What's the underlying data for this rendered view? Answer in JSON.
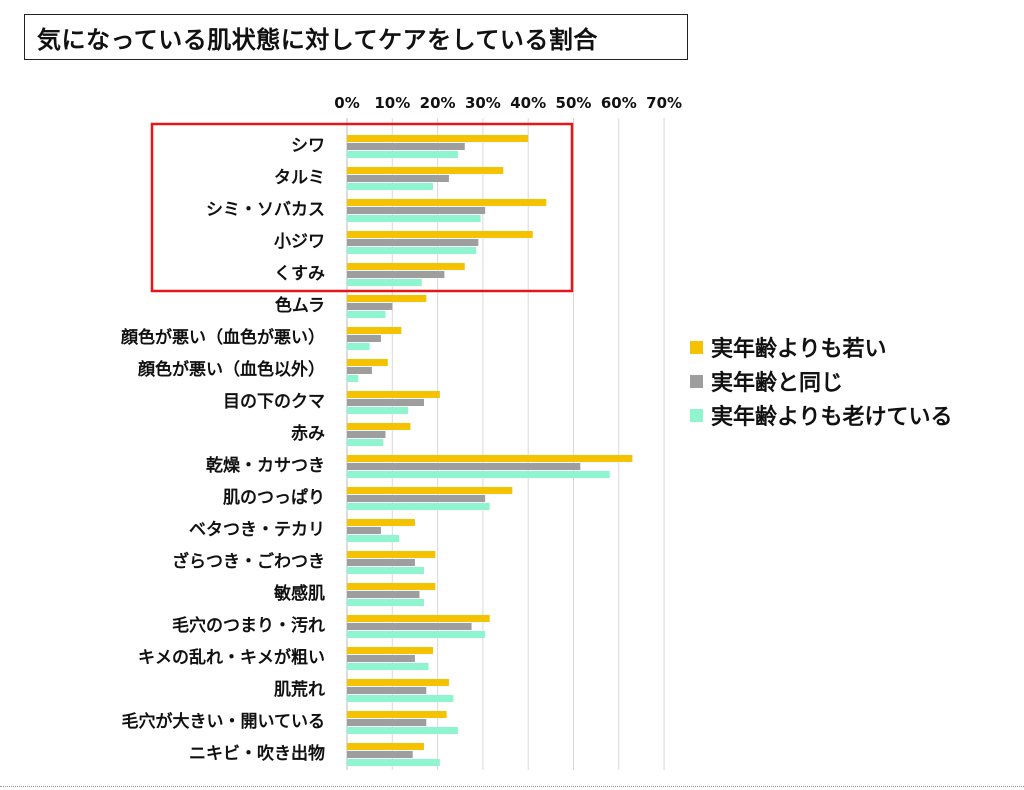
{
  "title": "気になっている肌状態に対してケアをしている割合",
  "colors": {
    "series": [
      "#F5C200",
      "#9E9E9E",
      "#8FF5CF"
    ],
    "highlight_box": "#E8141C",
    "grid": "#d8d8d8"
  },
  "chart_data": {
    "type": "bar",
    "orientation": "horizontal",
    "title": "気になっている肌状態に対してケアをしている割合",
    "xlabel": "",
    "ylabel": "",
    "xlim": [
      0,
      70
    ],
    "x_ticks": [
      "0%",
      "10%",
      "20%",
      "30%",
      "40%",
      "50%",
      "60%",
      "70%"
    ],
    "tick_values": [
      0,
      10,
      20,
      30,
      40,
      50,
      60,
      70
    ],
    "grid": true,
    "legend_position": "right",
    "highlighted_categories": [
      "シワ",
      "タルミ",
      "シミ・ソバカス",
      "小ジワ",
      "くすみ"
    ],
    "categories": [
      "シワ",
      "タルミ",
      "シミ・ソバカス",
      "小ジワ",
      "くすみ",
      "色ムラ",
      "顔色が悪い（血色が悪い）",
      "顔色が悪い（血色以外）",
      "目の下のクマ",
      "赤み",
      "乾燥・カサつき",
      "肌のつっぱり",
      "ベタつき・テカリ",
      "ざらつき・ごわつき",
      "敏感肌",
      "毛穴のつまり・汚れ",
      "キメの乱れ・キメが粗い",
      "肌荒れ",
      "毛穴が大きい・開いている",
      "ニキビ・吹き出物"
    ],
    "series": [
      {
        "name": "実年齢よりも若い",
        "values": [
          40,
          34.5,
          44,
          41,
          26,
          17.5,
          12,
          9,
          20.5,
          14,
          63,
          36.5,
          15,
          19.5,
          19.5,
          31.5,
          19,
          22.5,
          22,
          17
        ]
      },
      {
        "name": "実年齢と同じ",
        "values": [
          26,
          22.5,
          30.5,
          29,
          21.5,
          10,
          7.5,
          5.5,
          17,
          8.5,
          51.5,
          30.5,
          7.5,
          15,
          16,
          27.5,
          15,
          17.5,
          17.5,
          14.5
        ]
      },
      {
        "name": "実年齢よりも老けている",
        "values": [
          24.5,
          19,
          29.5,
          28.5,
          16.5,
          8.5,
          5,
          2.5,
          13.5,
          8,
          58,
          31.5,
          11.5,
          17,
          17,
          30.5,
          18,
          23.5,
          24.5,
          20.5
        ]
      }
    ]
  },
  "legend": {
    "items": [
      {
        "label": "実年齢よりも若い",
        "color": "#F5C200"
      },
      {
        "label": "実年齢と同じ",
        "color": "#9E9E9E"
      },
      {
        "label": "実年齢よりも老けている",
        "color": "#8FF5CF"
      }
    ]
  }
}
